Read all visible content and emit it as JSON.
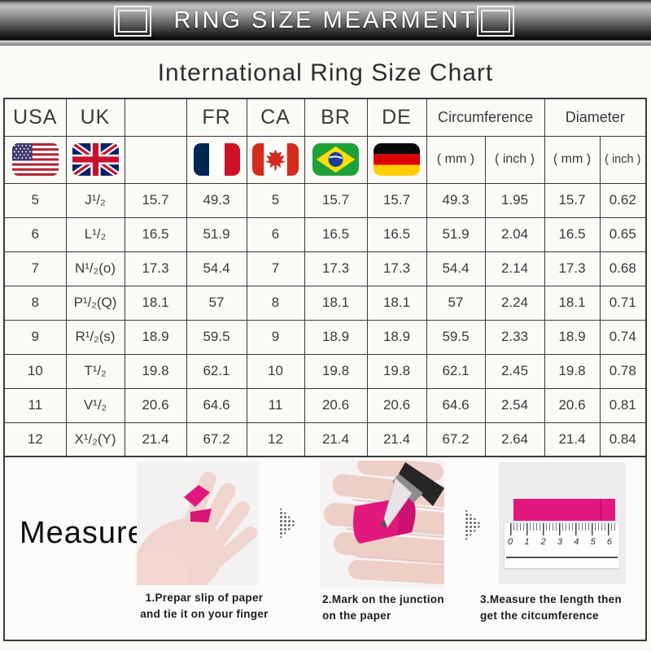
{
  "banner": {
    "title": "RING SIZE MEARMENT"
  },
  "page_title": "International Ring Size Chart",
  "colors": {
    "accent_pink": "#e2187f",
    "accent_pink_dark": "#c01169",
    "banner_black": "#000000",
    "table_border": "#3a3a3a",
    "skin": "#f0d5ce"
  },
  "table": {
    "columns": [
      "USA",
      "UK",
      "",
      "FR",
      "CA",
      "BR",
      "DE"
    ],
    "group_headers": {
      "circumference": "Circumference",
      "diameter": "Diameter"
    },
    "unit_mm": "( mm )",
    "unit_inch": "( inch )",
    "flags": [
      "us-flag",
      "uk-flag",
      "fr-flag",
      "ca-flag",
      "br-flag",
      "de-flag"
    ],
    "rows": [
      [
        "5",
        "J¹/₂",
        "15.7",
        "49.3",
        "5",
        "15.7",
        "15.7",
        "49.3",
        "1.95",
        "15.7",
        "0.62"
      ],
      [
        "6",
        "L¹/₂",
        "16.5",
        "51.9",
        "6",
        "16.5",
        "16.5",
        "51.9",
        "2.04",
        "16.5",
        "0.65"
      ],
      [
        "7",
        "N¹/₂(o)",
        "17.3",
        "54.4",
        "7",
        "17.3",
        "17.3",
        "54.4",
        "2.14",
        "17.3",
        "0.68"
      ],
      [
        "8",
        "P¹/₂(Q)",
        "18.1",
        "57",
        "8",
        "18.1",
        "18.1",
        "57",
        "2.24",
        "18.1",
        "0.71"
      ],
      [
        "9",
        "R¹/₂(s)",
        "18.9",
        "59.5",
        "9",
        "18.9",
        "18.9",
        "59.5",
        "2.33",
        "18.9",
        "0.74"
      ],
      [
        "10",
        "T¹/₂",
        "19.8",
        "62.1",
        "10",
        "19.8",
        "19.8",
        "62.1",
        "2.45",
        "19.8",
        "0.78"
      ],
      [
        "11",
        "V¹/₂",
        "20.6",
        "64.6",
        "11",
        "20.6",
        "20.6",
        "64.6",
        "2.54",
        "20.6",
        "0.81"
      ],
      [
        "12",
        "X¹/₂(Y)",
        "21.4",
        "67.2",
        "12",
        "21.4",
        "21.4",
        "67.2",
        "2.64",
        "21.4",
        "0.84"
      ]
    ]
  },
  "measure": {
    "label": "Measure",
    "steps": [
      {
        "lines": [
          "1.Prepar slip of paper",
          "and tie it on your finger"
        ]
      },
      {
        "lines": [
          "2.Mark on the junction",
          "on the paper"
        ]
      },
      {
        "lines": [
          "3.Measure the length then",
          "get the citcumference"
        ]
      }
    ],
    "ruler_numbers": [
      "0",
      "1",
      "2",
      "3",
      "4",
      "5",
      "6"
    ]
  }
}
